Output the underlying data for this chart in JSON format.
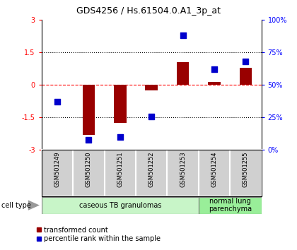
{
  "title": "GDS4256 / Hs.61504.0.A1_3p_at",
  "samples": [
    "GSM501249",
    "GSM501250",
    "GSM501251",
    "GSM501252",
    "GSM501253",
    "GSM501254",
    "GSM501255"
  ],
  "transformed_count": [
    0.02,
    -2.3,
    -1.75,
    -0.25,
    1.05,
    0.15,
    0.8
  ],
  "percentile_rank": [
    37,
    8,
    10,
    26,
    88,
    62,
    68
  ],
  "ylim_left": [
    -3,
    3
  ],
  "ylim_right": [
    0,
    100
  ],
  "yticks_left": [
    -3,
    -1.5,
    0,
    1.5,
    3
  ],
  "ytick_labels_left": [
    "-3",
    "-1.5",
    "0",
    "1.5",
    "3"
  ],
  "yticks_right": [
    0,
    25,
    50,
    75,
    100
  ],
  "ytick_labels_right": [
    "0%",
    "25%",
    "50%",
    "75%",
    "100%"
  ],
  "dotted_lines": [
    -1.5,
    1.5
  ],
  "bar_color": "#990000",
  "dot_color": "#0000cc",
  "dot_size": 30,
  "bar_width": 0.4,
  "groups": [
    {
      "label": "caseous TB granulomas",
      "n": 5,
      "color": "#c8f5c8"
    },
    {
      "label": "normal lung\nparenchyma",
      "n": 2,
      "color": "#99ee99"
    }
  ],
  "cell_type_label": "cell type",
  "legend_red_label": "transformed count",
  "legend_blue_label": "percentile rank within the sample",
  "title_fontsize": 9,
  "tick_fontsize": 7,
  "label_fontsize": 7,
  "legend_fontsize": 7,
  "sample_label_fontsize": 6
}
